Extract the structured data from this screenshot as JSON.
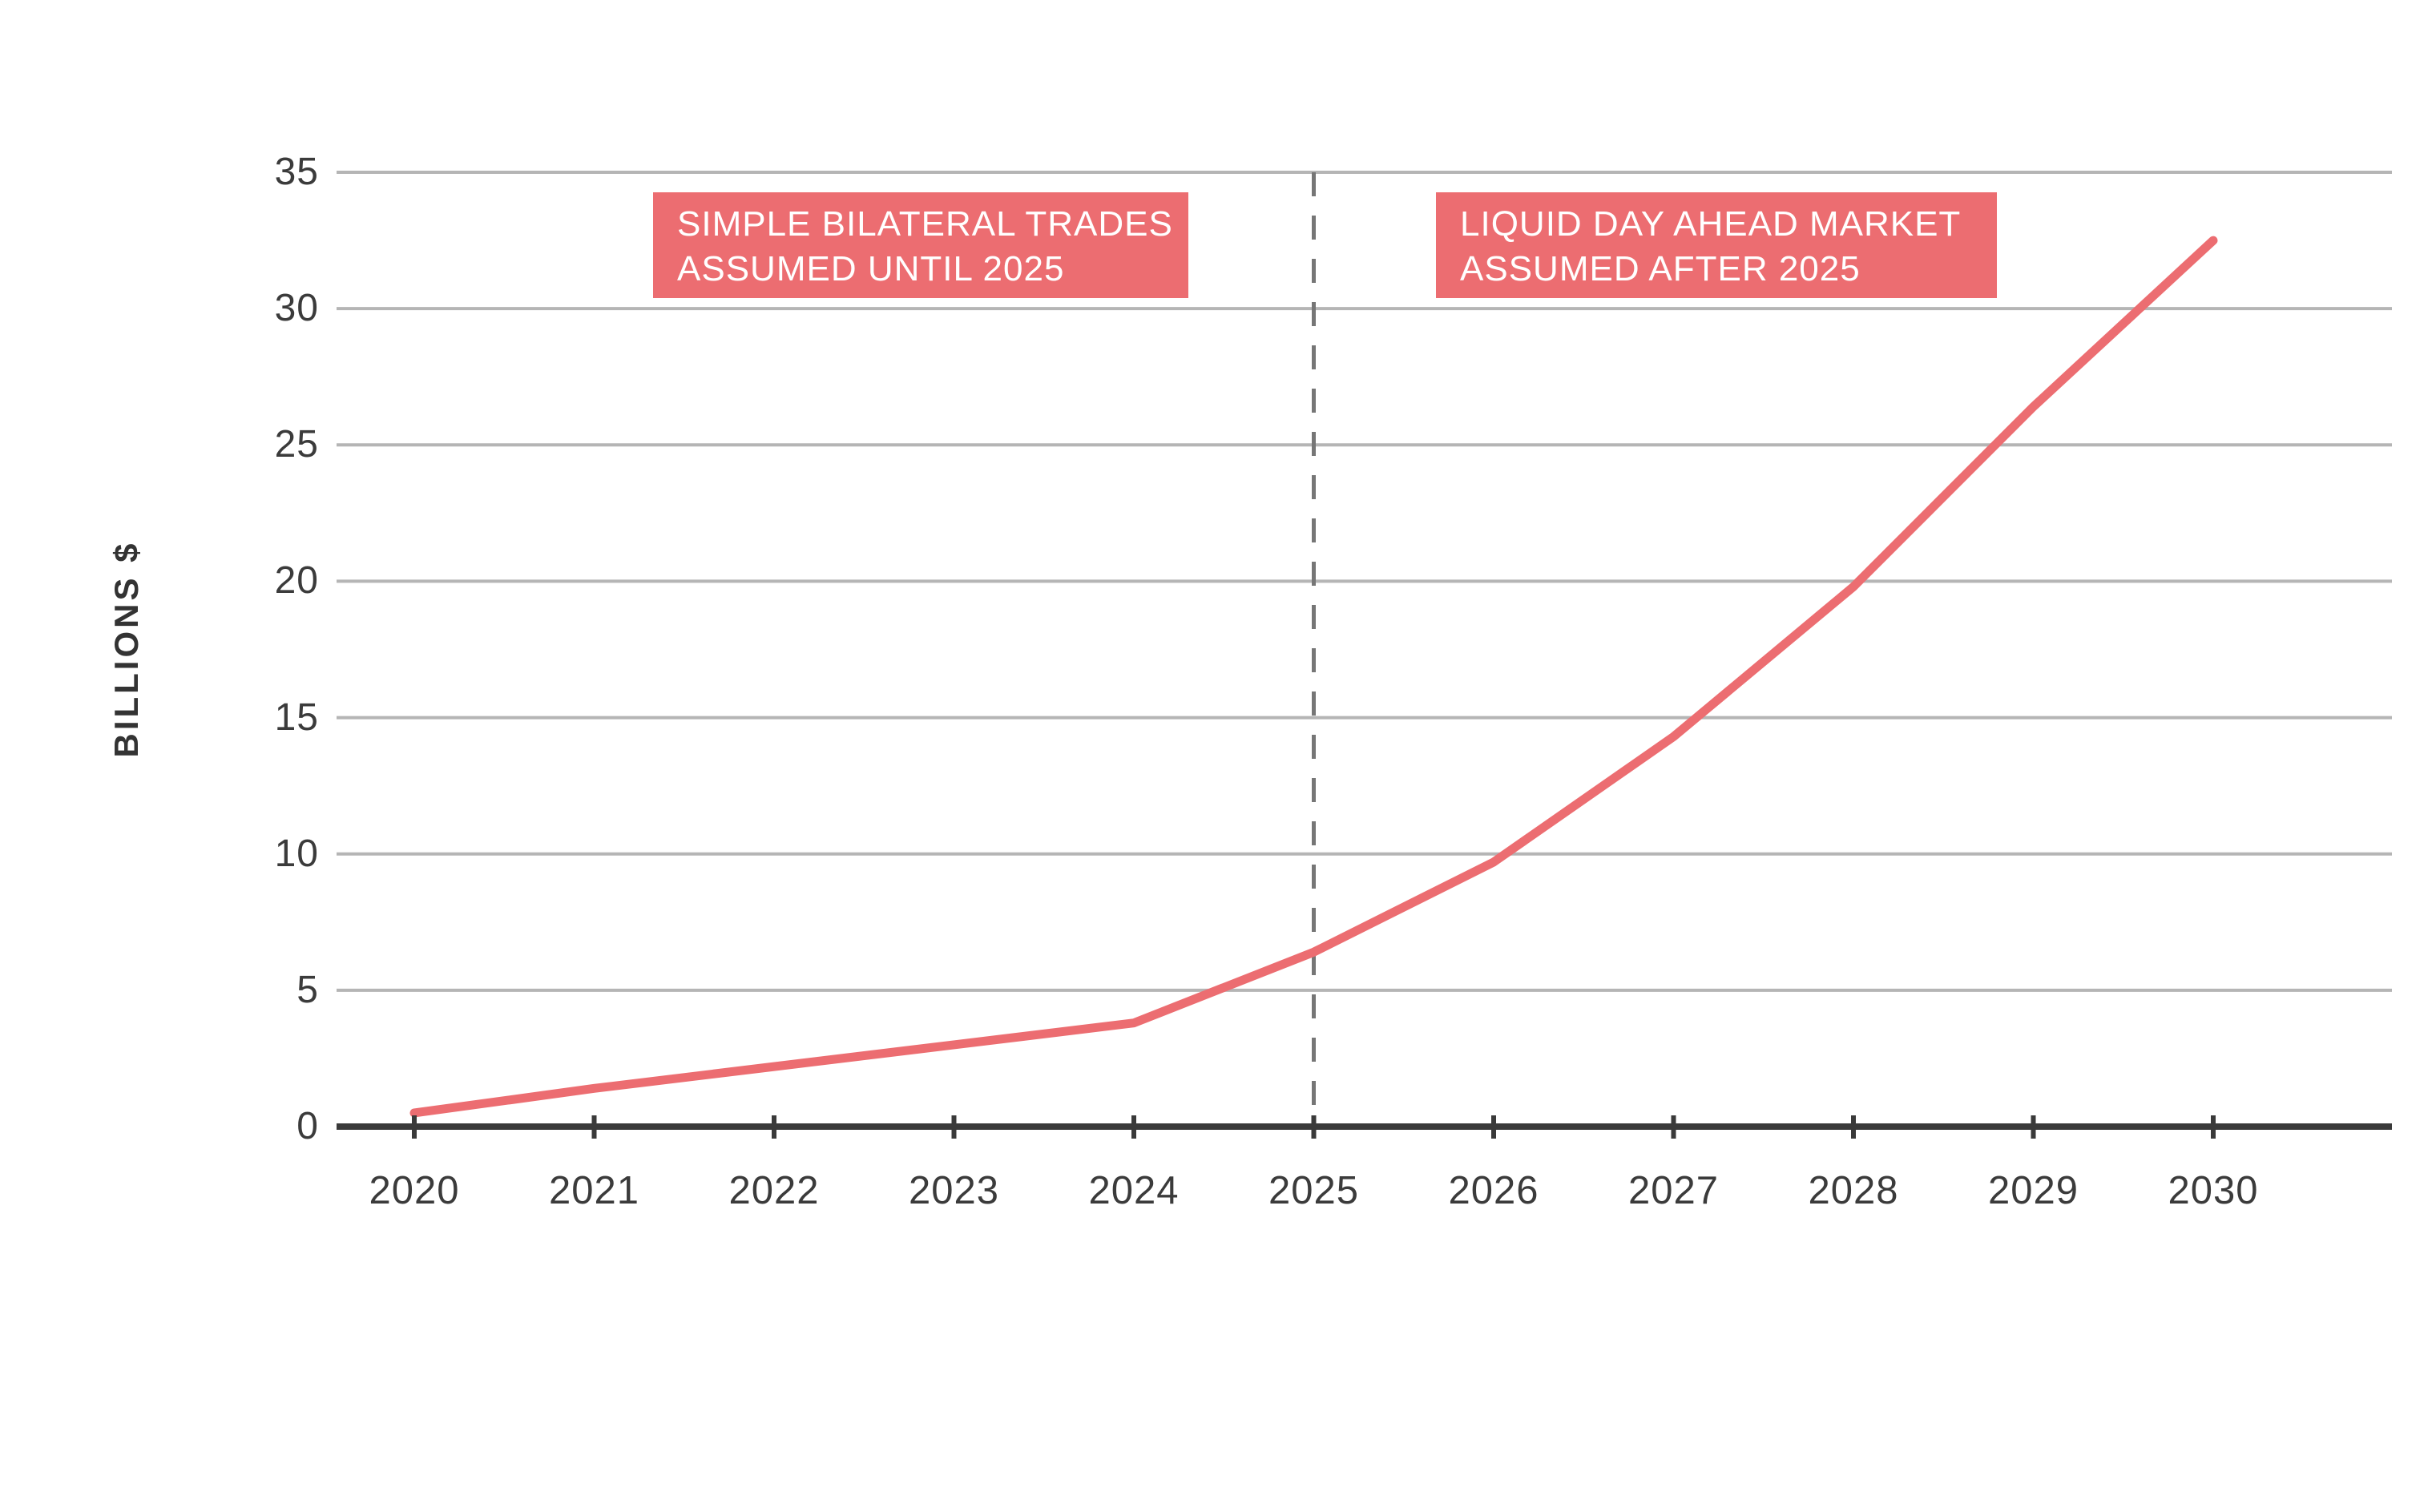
{
  "chart_data": {
    "type": "line",
    "title": "",
    "ylabel": "BILLIONS $",
    "xlabel": "",
    "ylim": [
      0,
      35
    ],
    "yticks": [
      0,
      5,
      10,
      15,
      20,
      25,
      30,
      35
    ],
    "x": [
      2020,
      2021,
      2022,
      2023,
      2024,
      2025,
      2026,
      2027,
      2028,
      2029,
      2030
    ],
    "xtick_labels": [
      "2020",
      "2021",
      "2022",
      "2023",
      "2024",
      "2025",
      "2026",
      "2027",
      "2028",
      "2029",
      "2030"
    ],
    "grid": true,
    "legend": "none",
    "series": [
      {
        "name": "market-value-billions",
        "values": [
          0.5,
          1.4,
          2.2,
          3.0,
          3.8,
          6.4,
          9.7,
          14.3,
          19.8,
          26.4,
          32.5
        ]
      }
    ],
    "reference_line": {
      "x": 2025,
      "style": "dashed",
      "orientation": "vertical"
    },
    "annotations": [
      {
        "line1": "SIMPLE BILATERAL TRADES",
        "line2": "ASSUMED UNTIL 2025",
        "side": "left-of-2025"
      },
      {
        "line1": "LIQUID DAY AHEAD MARKET",
        "line2": "ASSUMED AFTER 2025",
        "side": "right-of-2025"
      }
    ]
  },
  "colors": {
    "accent_pink": "#ec6d71",
    "annotation_box_bg": "#ec6d71",
    "annotation_text": "#ffffff",
    "gridline": "#b5b5b5",
    "axis": "#3a3a3a",
    "dashed_reference": "#767676",
    "tick_text": "#3b3b3b",
    "background": "#ffffff"
  }
}
